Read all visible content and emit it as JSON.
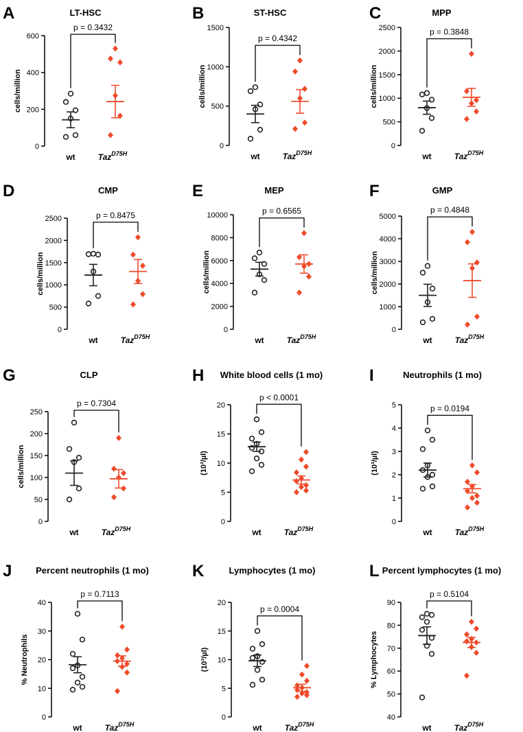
{
  "figure": {
    "colors": {
      "wt": "#222222",
      "taz": "#ee4b2b"
    },
    "group_labels": {
      "wt": "wt",
      "taz_base": "Taz",
      "taz_sup": "D75H"
    }
  },
  "chart_data": [
    {
      "letter": "A",
      "type": "scatter",
      "title": "LT-HSC",
      "ylabel": "cells/million",
      "ylim": [
        0,
        600
      ],
      "yticks": [
        0,
        200,
        400,
        600
      ],
      "pvalue": "p = 0.3432",
      "wt": {
        "points": [
          50,
          60,
          150,
          195,
          240,
          285
        ],
        "mean": 143,
        "sem": 43
      },
      "taz": {
        "points": [
          60,
          165,
          275,
          455,
          475,
          530
        ],
        "mean": 242,
        "sem": 88
      }
    },
    {
      "letter": "B",
      "type": "scatter",
      "title": "ST-HSC",
      "ylabel": "cells/million",
      "ylim": [
        0,
        1500
      ],
      "yticks": [
        0,
        500,
        1000,
        1500
      ],
      "pvalue": "p = 0.4342",
      "wt": {
        "points": [
          85,
          200,
          460,
          520,
          690,
          740
        ],
        "mean": 400,
        "sem": 110
      },
      "taz": {
        "points": [
          210,
          290,
          600,
          720,
          940,
          1080
        ],
        "mean": 560,
        "sem": 150
      }
    },
    {
      "letter": "C",
      "type": "scatter",
      "title": "MPP",
      "ylabel": "cells/million",
      "ylim": [
        0,
        2500
      ],
      "yticks": [
        0,
        500,
        1000,
        1500,
        2000,
        2500
      ],
      "pvalue": "p = 0.3848",
      "wt": {
        "points": [
          310,
          580,
          790,
          970,
          1080,
          1110
        ],
        "mean": 800,
        "sem": 140
      },
      "taz": {
        "points": [
          560,
          720,
          890,
          960,
          1150,
          1940
        ],
        "mean": 1020,
        "sem": 190
      }
    },
    {
      "letter": "D",
      "type": "scatter",
      "title": "CMP",
      "ylabel": "cells/million",
      "ylim": [
        0,
        2500
      ],
      "yticks": [
        0,
        500,
        1000,
        1500,
        2000,
        2500
      ],
      "pvalue": "p = 0.8475",
      "wt": {
        "points": [
          580,
          750,
          1300,
          1680,
          1690,
          1700
        ],
        "mean": 1220,
        "sem": 240
      },
      "taz": {
        "points": [
          560,
          790,
          1090,
          1430,
          1680,
          2070
        ],
        "mean": 1300,
        "sem": 270
      }
    },
    {
      "letter": "E",
      "type": "scatter",
      "title": "MEP",
      "ylabel": "cells/million",
      "ylim": [
        0,
        10000
      ],
      "yticks": [
        0,
        2000,
        4000,
        6000,
        8000,
        10000
      ],
      "pvalue": "p = 0.6565",
      "wt": {
        "points": [
          3200,
          4300,
          4800,
          5700,
          6200,
          6700
        ],
        "mean": 5250,
        "sem": 600
      },
      "taz": {
        "points": [
          3200,
          4600,
          5500,
          5700,
          6300,
          8400
        ],
        "mean": 5700,
        "sem": 800
      }
    },
    {
      "letter": "F",
      "type": "scatter",
      "title": "GMP",
      "ylabel": "cells/million",
      "ylim": [
        0,
        5000
      ],
      "yticks": [
        0,
        1000,
        2000,
        3000,
        4000,
        5000
      ],
      "pvalue": "p = 0.4848",
      "wt": {
        "points": [
          310,
          460,
          1200,
          1800,
          2500,
          2800
        ],
        "mean": 1500,
        "sem": 490
      },
      "taz": {
        "points": [
          210,
          560,
          2700,
          2950,
          3850,
          4300
        ],
        "mean": 2150,
        "sem": 740
      }
    },
    {
      "letter": "G",
      "type": "scatter",
      "title": "CLP",
      "ylabel": "cells/million",
      "ylim": [
        0,
        250
      ],
      "yticks": [
        0,
        50,
        100,
        150,
        200,
        250
      ],
      "pvalue": "p = 0.7304",
      "wt": {
        "points": [
          50,
          75,
          135,
          145,
          165,
          225
        ],
        "mean": 110,
        "sem": 28
      },
      "taz": {
        "points": [
          55,
          75,
          100,
          110,
          120,
          190
        ],
        "mean": 97,
        "sem": 21
      }
    },
    {
      "letter": "H",
      "type": "scatter",
      "title": "White blood cells (1 mo)",
      "ylabel": "(10³/µl)",
      "ylim": [
        0,
        20
      ],
      "yticks": [
        0,
        5,
        10,
        15,
        20
      ],
      "pvalue": "p < 0.0001",
      "wt": {
        "points": [
          8.6,
          9.7,
          10.8,
          12.0,
          12.6,
          13.3,
          14.2,
          15.3,
          17.5
        ],
        "mean": 12.8,
        "sem": 0.8
      },
      "taz": {
        "points": [
          5.0,
          5.3,
          5.9,
          6.2,
          6.9,
          7.4,
          8.4,
          9.4,
          10.6,
          11.9
        ],
        "mean": 7.1,
        "sem": 0.7
      }
    },
    {
      "letter": "I",
      "type": "scatter",
      "title": "Neutrophils (1 mo)",
      "ylabel": "(10³/µl)",
      "ylim": [
        0,
        5
      ],
      "yticks": [
        0,
        1,
        2,
        3,
        4,
        5
      ],
      "pvalue": "p = 0.0194",
      "wt": {
        "points": [
          1.4,
          1.5,
          1.9,
          2.0,
          2.2,
          2.4,
          3.1,
          3.5,
          3.9
        ],
        "mean": 2.2,
        "sem": 0.3
      },
      "taz": {
        "points": [
          0.6,
          0.8,
          1.0,
          1.1,
          1.3,
          1.5,
          1.7,
          2.1,
          2.4
        ],
        "mean": 1.4,
        "sem": 0.18
      }
    },
    {
      "letter": "J",
      "type": "scatter",
      "title": "Percent neutrophils (1 mo)",
      "ylabel": "% Neutrophils",
      "ylim": [
        0,
        40
      ],
      "yticks": [
        0,
        10,
        20,
        30,
        40
      ],
      "pvalue": "p = 0.7113",
      "wt": {
        "points": [
          9.5,
          10.5,
          12.0,
          14.0,
          17.0,
          18.0,
          22.0,
          27.0,
          36.0
        ],
        "mean": 18.2,
        "sem": 2.8
      },
      "taz": {
        "points": [
          9.0,
          15.5,
          17.5,
          18.5,
          19.5,
          20.5,
          21.5,
          23.5,
          31.5
        ],
        "mean": 19.5,
        "sem": 1.8
      }
    },
    {
      "letter": "K",
      "type": "scatter",
      "title": "Lymphocytes (1 mo)",
      "ylabel": "(10³/µl)",
      "ylim": [
        0,
        20
      ],
      "yticks": [
        0,
        5,
        10,
        15,
        20
      ],
      "pvalue": "p = 0.0004",
      "wt": {
        "points": [
          5.6,
          6.5,
          8.2,
          9.6,
          10.3,
          10.6,
          11.9,
          12.7,
          15.0
        ],
        "mean": 9.8,
        "sem": 1.0
      },
      "taz": {
        "points": [
          3.5,
          3.8,
          4.1,
          4.3,
          4.7,
          5.1,
          5.5,
          6.3,
          7.4,
          8.9
        ],
        "mean": 5.1,
        "sem": 0.6
      }
    },
    {
      "letter": "L",
      "type": "scatter",
      "title": "Percent lymphocytes (1 mo)",
      "ylabel": "% Lymphocytes",
      "ylim": [
        40,
        90
      ],
      "yticks": [
        40,
        50,
        60,
        70,
        80,
        90
      ],
      "pvalue": "p = 0.5104",
      "wt": {
        "points": [
          48.5,
          67.5,
          71.0,
          74.5,
          78.0,
          81.5,
          83.5,
          84.5,
          85.0
        ],
        "mean": 75.5,
        "sem": 3.8
      },
      "taz": {
        "points": [
          58.0,
          68.0,
          70.5,
          72.5,
          73.0,
          74.0,
          76.0,
          78.5,
          81.5
        ],
        "mean": 72.5,
        "sem": 2.2
      }
    }
  ]
}
